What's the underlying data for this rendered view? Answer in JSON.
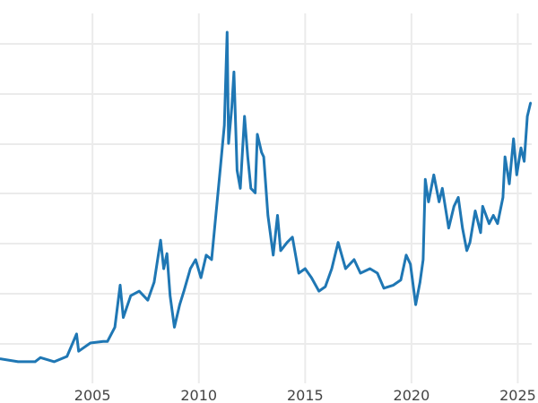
{
  "chart_data": {
    "type": "line",
    "title": "",
    "xlabel": "",
    "ylabel": "",
    "xlim": [
      2000.65,
      2025.95
    ],
    "ylim": [
      -1.4,
      52.3
    ],
    "grid": true,
    "x_ticks": [
      "2005",
      "2010",
      "2015",
      "2020",
      "2025"
    ],
    "x_tick_values": [
      2005,
      2010,
      2015,
      2020,
      2025
    ],
    "line_color": "#1f77b4",
    "grid_color": "#ebebeb",
    "series": [
      {
        "x": [
          2000.65,
          2001.5,
          2002.3,
          2002.55,
          2003.2,
          2003.8,
          2004.25,
          2004.35,
          2004.9,
          2005.5,
          2005.7,
          2006.05,
          2006.3,
          2006.45,
          2006.8,
          2007.2,
          2007.6,
          2007.9,
          2008.2,
          2008.35,
          2008.5,
          2008.65,
          2008.85,
          2009.1,
          2009.3,
          2009.6,
          2009.85,
          2010.1,
          2010.35,
          2010.6,
          2010.8,
          2011.0,
          2011.2,
          2011.33,
          2011.4,
          2011.55,
          2011.65,
          2011.8,
          2011.95,
          2012.15,
          2012.3,
          2012.45,
          2012.65,
          2012.75,
          2012.95,
          2013.05,
          2013.25,
          2013.5,
          2013.7,
          2013.85,
          2014.15,
          2014.4,
          2014.7,
          2015.0,
          2015.3,
          2015.65,
          2015.95,
          2016.25,
          2016.55,
          2016.9,
          2017.3,
          2017.6,
          2018.05,
          2018.4,
          2018.7,
          2019.15,
          2019.5,
          2019.75,
          2019.95,
          2020.2,
          2020.4,
          2020.55,
          2020.65,
          2020.8,
          2021.05,
          2021.3,
          2021.45,
          2021.75,
          2022.0,
          2022.2,
          2022.4,
          2022.6,
          2022.75,
          2023.0,
          2023.25,
          2023.35,
          2023.65,
          2023.85,
          2024.05,
          2024.3,
          2024.4,
          2024.6,
          2024.8,
          2024.95,
          2025.15,
          2025.3,
          2025.45,
          2025.6
        ],
        "y": [
          4.5,
          4.1,
          4.1,
          4.65,
          4.1,
          4.8,
          7.8,
          5.5,
          6.6,
          6.8,
          6.8,
          8.7,
          14.3,
          10.0,
          12.9,
          13.5,
          12.3,
          14.7,
          20.3,
          16.5,
          18.5,
          12.9,
          8.7,
          11.7,
          13.5,
          16.5,
          17.7,
          15.3,
          18.3,
          17.7,
          23.6,
          29.6,
          35.6,
          48.0,
          33.2,
          38.0,
          42.7,
          29.6,
          27.2,
          36.8,
          31.4,
          27.2,
          26.6,
          34.4,
          32.0,
          31.4,
          23.6,
          18.3,
          23.6,
          18.9,
          20.0,
          20.7,
          15.9,
          16.5,
          15.3,
          13.5,
          14.1,
          16.5,
          20.0,
          16.5,
          17.7,
          15.9,
          16.5,
          15.9,
          13.9,
          14.3,
          15.0,
          18.3,
          17.1,
          11.7,
          14.7,
          17.7,
          28.4,
          25.4,
          29.0,
          25.4,
          27.2,
          21.9,
          24.8,
          26.0,
          21.9,
          18.9,
          20.0,
          24.2,
          21.3,
          24.8,
          22.5,
          23.6,
          22.5,
          26.0,
          31.4,
          27.8,
          33.8,
          29.0,
          32.6,
          30.8,
          36.8,
          38.6
        ]
      }
    ]
  }
}
